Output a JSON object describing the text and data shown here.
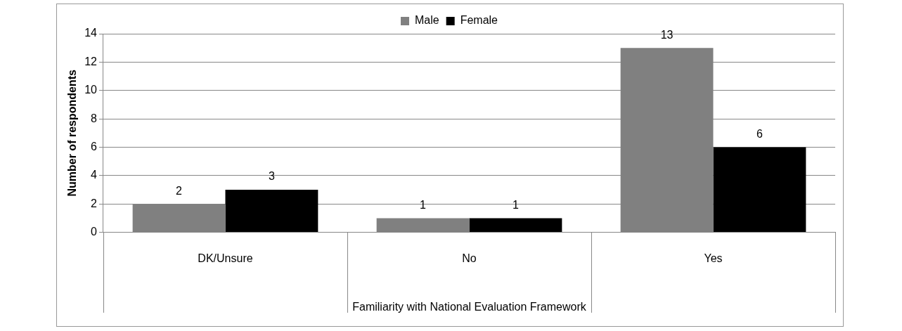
{
  "chart_data": {
    "type": "bar",
    "xlabel": "Familiarity with National Evaluation Framework",
    "ylabel": "Number of respondents",
    "categories": [
      "DK/Unsure",
      "No",
      "Yes"
    ],
    "series": [
      {
        "name": "Male",
        "color": "#808080",
        "values": [
          2,
          1,
          13
        ]
      },
      {
        "name": "Female",
        "color": "#000000",
        "values": [
          3,
          1,
          6
        ]
      }
    ],
    "ylim": [
      0,
      14
    ],
    "yticks": [
      0,
      2,
      4,
      6,
      8,
      10,
      12,
      14
    ],
    "grid": "y",
    "legend": "top",
    "data_labels": true
  }
}
